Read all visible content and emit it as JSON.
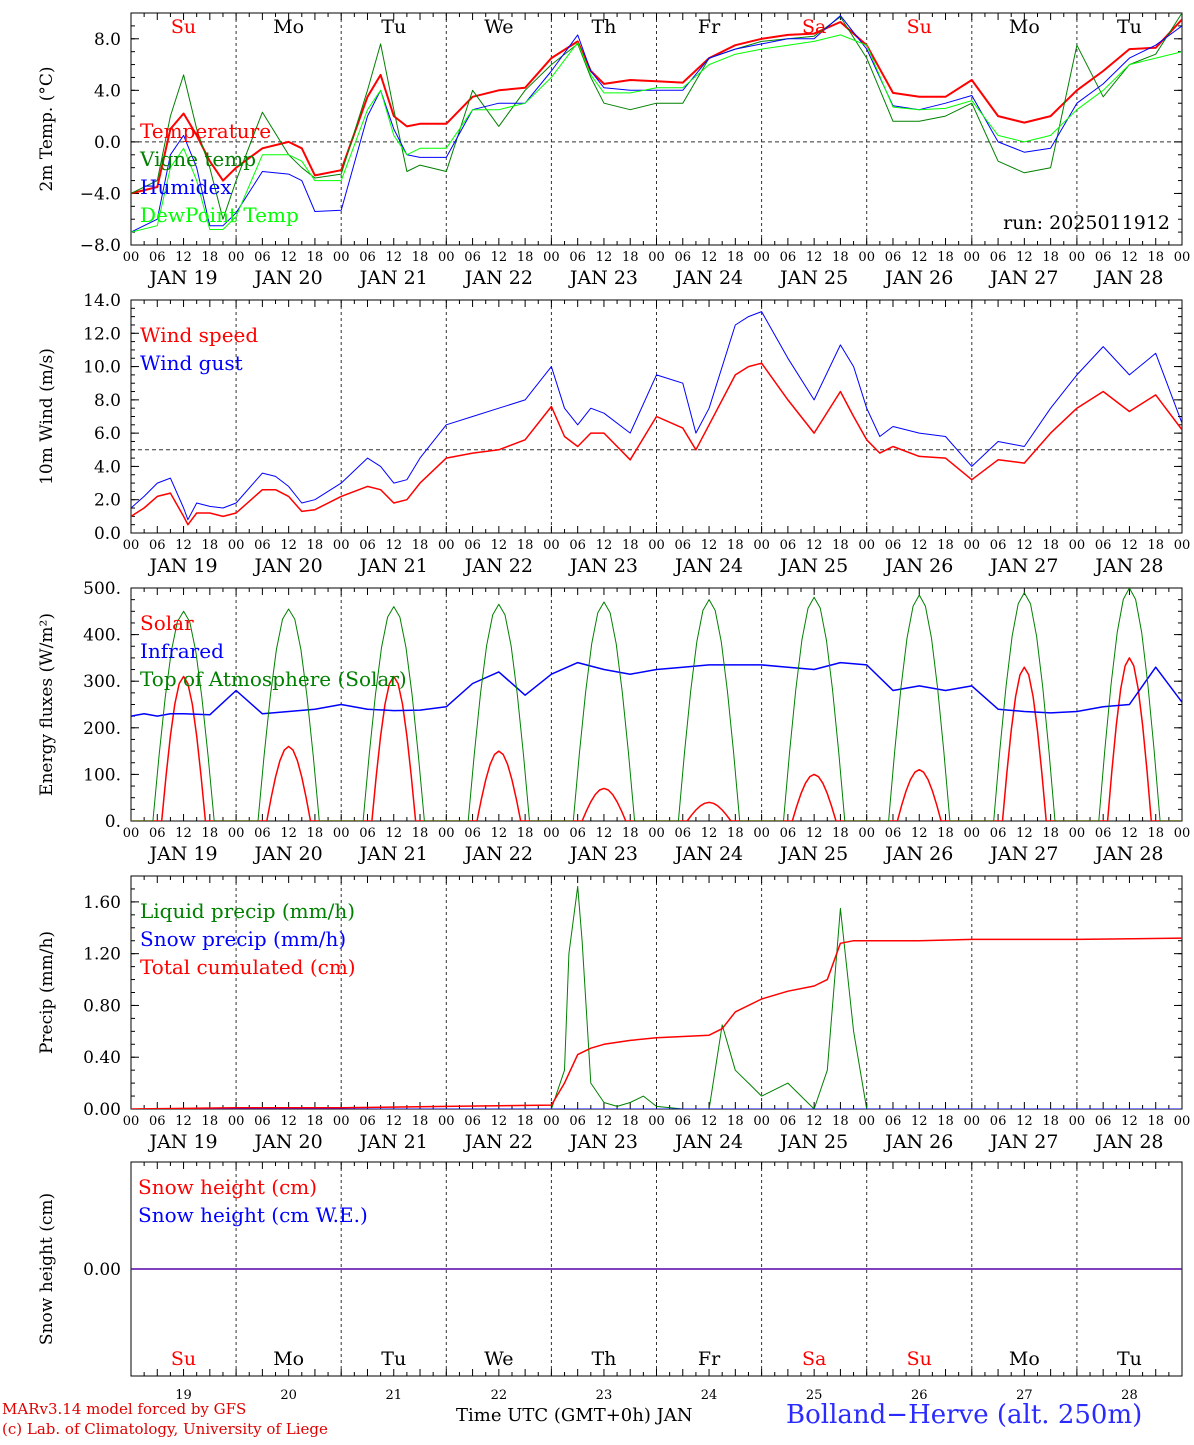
{
  "footer": {
    "credit_line1": "MARv3.14 model forced by GFS",
    "credit_line2": "(c) Lab. of Climatology, University of Liege",
    "x_title": "Time UTC (GMT+0h) JAN",
    "station": "Bolland−Herve (alt. 250m)"
  },
  "colors": {
    "red": "#ff0000",
    "green": "#008000",
    "blue": "#0000ff",
    "lightgreen": "#00ff00",
    "grid": "#555555",
    "weekend": "#ff0000"
  },
  "chart_data": [
    {
      "id": "temp",
      "type": "line",
      "ylabel": "2m Temp. (°C)",
      "ylim": [
        -8,
        10
      ],
      "yticks": [
        8.0,
        4.0,
        0.0,
        -4.0,
        -8.0
      ],
      "ytick_labels": [
        "8.0",
        "4.0",
        "0.0",
        "−4.0",
        "−8.0"
      ],
      "ref_line": 0,
      "weekday_labels": [
        "Su",
        "Mo",
        "Tu",
        "We",
        "Th",
        "Fr",
        "Sa",
        "Su",
        "Mo",
        "Tu"
      ],
      "weekday_colors": [
        "#ff0000",
        "#000000",
        "#000000",
        "#000000",
        "#000000",
        "#000000",
        "#ff0000",
        "#ff0000",
        "#000000",
        "#000000"
      ],
      "annotation": "run: 2025011912",
      "series": [
        {
          "name": "Temperature",
          "color": "#ff0000",
          "width": 2,
          "x": [
            0,
            6,
            9,
            12,
            15,
            18,
            21,
            24,
            30,
            36,
            39,
            42,
            48,
            54,
            57,
            60,
            63,
            66,
            72,
            78,
            84,
            90,
            96,
            102,
            105,
            108,
            114,
            120,
            126,
            132,
            138,
            144,
            150,
            156,
            162,
            168,
            174,
            180,
            186,
            192,
            198,
            204,
            210,
            216,
            222,
            228,
            234,
            240
          ],
          "y": [
            -4,
            -3.5,
            1,
            2.2,
            0.5,
            -1.5,
            -3,
            -2,
            -0.5,
            0,
            -0.5,
            -2.6,
            -2.2,
            3.5,
            5.2,
            2,
            1.2,
            1.4,
            1.4,
            3.5,
            4,
            4.2,
            6.5,
            7.8,
            5.5,
            4.5,
            4.8,
            4.7,
            4.6,
            6.5,
            7.5,
            8,
            8.3,
            8.4,
            9.3,
            7.5,
            3.8,
            3.5,
            3.5,
            4.8,
            2,
            1.5,
            2,
            4,
            5.5,
            7.2,
            7.3,
            9.5
          ]
        },
        {
          "name": "Vigne temp",
          "color": "#008000",
          "width": 1,
          "x": [
            0,
            6,
            9,
            12,
            15,
            18,
            21,
            24,
            30,
            36,
            39,
            42,
            48,
            54,
            57,
            60,
            63,
            66,
            72,
            78,
            84,
            90,
            96,
            102,
            105,
            108,
            114,
            120,
            126,
            132,
            138,
            144,
            150,
            156,
            162,
            168,
            174,
            180,
            186,
            192,
            198,
            204,
            210,
            216,
            222,
            228,
            234,
            240
          ],
          "y": [
            -4,
            -3,
            2,
            5.2,
            1,
            -2,
            -6,
            -3,
            2.3,
            -1,
            -2,
            -2.8,
            -2.5,
            4,
            7.6,
            2.5,
            -2.3,
            -1.8,
            -2.3,
            4,
            1.2,
            4,
            6,
            7.6,
            5,
            3,
            2.5,
            3,
            3,
            6.5,
            7.2,
            7.8,
            8,
            8.2,
            9.7,
            6.5,
            1.6,
            1.6,
            2,
            3,
            -1.5,
            -2.4,
            -2,
            7.5,
            3.5,
            6,
            6.8,
            10
          ]
        },
        {
          "name": "Humidex",
          "color": "#0000ff",
          "width": 1,
          "x": [
            0,
            6,
            9,
            12,
            15,
            18,
            21,
            24,
            30,
            36,
            39,
            42,
            48,
            54,
            57,
            60,
            63,
            66,
            72,
            78,
            84,
            90,
            96,
            102,
            105,
            108,
            114,
            120,
            126,
            132,
            138,
            144,
            150,
            156,
            162,
            168,
            174,
            180,
            186,
            192,
            198,
            204,
            210,
            216,
            222,
            228,
            234,
            240
          ],
          "y": [
            -7,
            -6,
            -1,
            0.5,
            -2,
            -6.5,
            -6.5,
            -5.5,
            -2.3,
            -2.5,
            -3,
            -5.4,
            -5.3,
            2,
            4,
            1,
            -1,
            -1.2,
            -1.2,
            2.5,
            3,
            3,
            5.5,
            8.3,
            5.5,
            4.2,
            4,
            4,
            4,
            6.5,
            7.2,
            7.6,
            8,
            8,
            9.8,
            7.2,
            2.8,
            2.5,
            3,
            3.6,
            0,
            -0.8,
            -0.5,
            3,
            4.5,
            6.5,
            7.5,
            9
          ]
        },
        {
          "name": "DewPoint Temp",
          "color": "#00ff00",
          "width": 1,
          "x": [
            0,
            6,
            9,
            12,
            15,
            18,
            21,
            24,
            30,
            36,
            39,
            42,
            48,
            54,
            57,
            60,
            63,
            66,
            72,
            78,
            84,
            90,
            96,
            102,
            105,
            108,
            114,
            120,
            126,
            132,
            138,
            144,
            150,
            156,
            162,
            168,
            174,
            180,
            186,
            192,
            198,
            204,
            210,
            216,
            222,
            228,
            234,
            240
          ],
          "y": [
            -7,
            -6.5,
            -2,
            -0.5,
            -3,
            -6.8,
            -6.8,
            -5.8,
            -1,
            -1,
            -1.5,
            -3,
            -3,
            2.5,
            4,
            0.5,
            -1,
            -0.5,
            -0.5,
            2.5,
            2.5,
            3,
            5,
            7.7,
            5.2,
            3.8,
            3.8,
            4.2,
            4.2,
            6,
            6.8,
            7.2,
            7.5,
            7.8,
            8.3,
            7.5,
            2.7,
            2.5,
            2.6,
            3.2,
            0.5,
            0,
            0.5,
            2.5,
            4,
            6,
            6.5,
            7
          ]
        }
      ]
    },
    {
      "id": "wind",
      "type": "line",
      "ylabel": "10m Wind (m/s)",
      "ylim": [
        0,
        14
      ],
      "yticks": [
        14,
        12,
        10,
        8,
        6,
        4,
        2,
        0
      ],
      "ytick_labels": [
        "14.0",
        "12.0",
        "10.0",
        "8.0",
        "6.0",
        "4.0",
        "2.0",
        "0.0"
      ],
      "ref_line": 5,
      "series": [
        {
          "name": "Wind speed",
          "color": "#ff0000",
          "width": 1.5,
          "x": [
            0,
            3,
            6,
            9,
            12,
            13,
            15,
            18,
            21,
            24,
            30,
            33,
            36,
            39,
            42,
            48,
            54,
            57,
            60,
            63,
            66,
            72,
            78,
            84,
            90,
            96,
            99,
            102,
            105,
            108,
            114,
            120,
            126,
            129,
            132,
            138,
            141,
            144,
            150,
            156,
            162,
            165,
            168,
            171,
            174,
            180,
            186,
            192,
            198,
            204,
            210,
            216,
            222,
            228,
            234,
            240
          ],
          "y": [
            1,
            1.5,
            2.2,
            2.4,
            1,
            0.5,
            1.2,
            1.2,
            1,
            1.2,
            2.6,
            2.6,
            2.2,
            1.3,
            1.4,
            2.2,
            2.8,
            2.6,
            1.8,
            2,
            3,
            4.5,
            4.8,
            5,
            5.6,
            7.6,
            5.8,
            5.2,
            6,
            6,
            4.4,
            7,
            6.3,
            5,
            6.5,
            9.5,
            10,
            10.2,
            8,
            6,
            8.5,
            7,
            5.6,
            4.8,
            5.2,
            4.6,
            4.5,
            3.2,
            4.4,
            4.2,
            6,
            7.5,
            8.5,
            7.3,
            8.3,
            6.2
          ]
        },
        {
          "name": "Wind gust",
          "color": "#0000ff",
          "width": 1,
          "x": [
            0,
            3,
            6,
            9,
            12,
            13,
            15,
            18,
            21,
            24,
            30,
            33,
            36,
            39,
            42,
            48,
            54,
            57,
            60,
            63,
            66,
            72,
            78,
            84,
            90,
            96,
            99,
            102,
            105,
            108,
            114,
            120,
            126,
            129,
            132,
            138,
            141,
            144,
            150,
            156,
            162,
            165,
            168,
            171,
            174,
            180,
            186,
            192,
            198,
            204,
            210,
            216,
            222,
            228,
            234,
            240
          ],
          "y": [
            1.5,
            2.2,
            3,
            3.3,
            1.5,
            0.8,
            1.8,
            1.6,
            1.5,
            1.8,
            3.6,
            3.4,
            2.8,
            1.8,
            2,
            3,
            4.5,
            4,
            3,
            3.2,
            4.5,
            6.5,
            7,
            7.5,
            8,
            10,
            7.5,
            6.5,
            7.5,
            7.2,
            6,
            9.5,
            9,
            6,
            7.5,
            12.5,
            13,
            13.3,
            10.5,
            8,
            11.3,
            10,
            7.5,
            5.8,
            6.4,
            6,
            5.8,
            4,
            5.5,
            5.2,
            7.5,
            9.5,
            11.2,
            9.5,
            10.8,
            6.6
          ]
        }
      ]
    },
    {
      "id": "flux",
      "type": "line",
      "ylabel": "Energy fluxes (W/m²)",
      "ylim": [
        0,
        500
      ],
      "yticks": [
        500,
        400,
        300,
        200,
        100,
        0
      ],
      "ytick_labels": [
        "500.",
        "400.",
        "300.",
        "200.",
        "100.",
        "0."
      ],
      "series": [
        {
          "name": "Solar",
          "color": "#ff0000",
          "width": 1.5,
          "peaks": [
            310,
            160,
            310,
            150,
            70,
            40,
            100,
            110,
            330,
            350
          ]
        },
        {
          "name": "Infrared",
          "color": "#0000ff",
          "width": 1.5,
          "x": [
            0,
            3,
            6,
            9,
            12,
            18,
            24,
            30,
            36,
            42,
            48,
            54,
            60,
            66,
            72,
            78,
            84,
            90,
            96,
            102,
            108,
            114,
            120,
            126,
            132,
            138,
            144,
            150,
            156,
            162,
            168,
            174,
            180,
            186,
            192,
            198,
            204,
            210,
            216,
            222,
            228,
            234,
            240
          ],
          "y": [
            225,
            230,
            225,
            230,
            230,
            228,
            280,
            230,
            235,
            240,
            250,
            240,
            237,
            238,
            245,
            295,
            320,
            270,
            315,
            340,
            325,
            315,
            325,
            330,
            335,
            335,
            335,
            330,
            325,
            340,
            335,
            280,
            290,
            280,
            290,
            240,
            235,
            232,
            235,
            245,
            250,
            330,
            255
          ]
        },
        {
          "name": "Top of Atmosphere (Solar)",
          "color": "#008000",
          "width": 1,
          "peaks": [
            450,
            455,
            460,
            465,
            470,
            475,
            480,
            485,
            490,
            500
          ]
        }
      ]
    },
    {
      "id": "precip",
      "type": "line",
      "ylabel": "Precip (mm/h)",
      "ylim": [
        0,
        1.8
      ],
      "yticks": [
        1.6,
        1.2,
        0.8,
        0.4,
        0.0
      ],
      "ytick_labels": [
        "1.60",
        "1.20",
        "0.80",
        "0.40",
        "0.00"
      ],
      "series": [
        {
          "name": "Liquid precip (mm/h)",
          "color": "#008000",
          "width": 1,
          "x": [
            0,
            24,
            48,
            72,
            96,
            99,
            100,
            102,
            103,
            105,
            108,
            111,
            114,
            117,
            120,
            126,
            132,
            135,
            138,
            141,
            144,
            150,
            156,
            159,
            162,
            165,
            168,
            192,
            216,
            240
          ],
          "y": [
            0,
            0,
            0,
            0,
            0,
            0.3,
            1.2,
            1.72,
            1.3,
            0.2,
            0.05,
            0.02,
            0.05,
            0.1,
            0.02,
            0,
            0,
            0.65,
            0.3,
            0.2,
            0.1,
            0.2,
            0,
            0.3,
            1.55,
            0.6,
            0,
            0,
            0,
            0
          ]
        },
        {
          "name": "Snow precip (mm/h)",
          "color": "#0000ff",
          "width": 1,
          "x": [
            0,
            240
          ],
          "y": [
            0,
            0
          ]
        },
        {
          "name": "Total cumulated (cm)",
          "color": "#ff0000",
          "width": 1.5,
          "x": [
            0,
            24,
            48,
            72,
            96,
            99,
            102,
            105,
            108,
            114,
            120,
            126,
            132,
            135,
            138,
            144,
            150,
            156,
            159,
            162,
            165,
            168,
            180,
            192,
            216,
            240
          ],
          "y": [
            0,
            0.01,
            0.01,
            0.02,
            0.03,
            0.2,
            0.42,
            0.47,
            0.5,
            0.53,
            0.55,
            0.56,
            0.57,
            0.62,
            0.75,
            0.85,
            0.91,
            0.95,
            1.0,
            1.28,
            1.3,
            1.3,
            1.3,
            1.31,
            1.31,
            1.32
          ]
        }
      ]
    },
    {
      "id": "snow",
      "type": "line",
      "ylabel": "Snow height (cm)",
      "ylim": [
        -1,
        1
      ],
      "yticks": [
        0.0
      ],
      "ytick_labels": [
        "0.00"
      ],
      "weekday_labels": [
        "Su",
        "Mo",
        "Tu",
        "We",
        "Th",
        "Fr",
        "Sa",
        "Su",
        "Mo",
        "Tu"
      ],
      "weekday_colors": [
        "#ff0000",
        "#000000",
        "#000000",
        "#000000",
        "#000000",
        "#000000",
        "#ff0000",
        "#ff0000",
        "#000000",
        "#000000"
      ],
      "day_numbers": [
        "19",
        "20",
        "21",
        "22",
        "23",
        "24",
        "25",
        "26",
        "27",
        "28"
      ],
      "series": [
        {
          "name": "Snow height (cm)",
          "color": "#ff0000",
          "width": 1.5,
          "x": [
            0,
            240
          ],
          "y": [
            0,
            0
          ]
        },
        {
          "name": "Snow height (cm W.E.)",
          "color": "#0000ff",
          "width": 1,
          "x": [
            0,
            240
          ],
          "y": [
            0,
            0
          ]
        }
      ]
    }
  ],
  "x_axis": {
    "hours": [
      "00",
      "06",
      "12",
      "18"
    ],
    "day_labels": [
      "JAN 19",
      "JAN 20",
      "JAN 21",
      "JAN 22",
      "JAN 23",
      "JAN 24",
      "JAN 25",
      "JAN 26",
      "JAN 27",
      "JAN 28"
    ],
    "range_hours": [
      0,
      240
    ]
  }
}
